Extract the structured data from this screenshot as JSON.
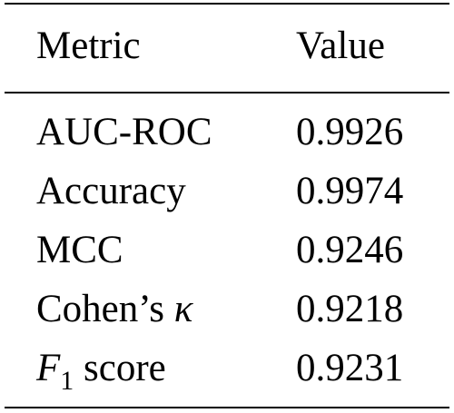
{
  "table": {
    "headers": {
      "metric": "Metric",
      "value": "Value"
    },
    "rows": [
      {
        "metric": "AUC-ROC",
        "value": "0.9926"
      },
      {
        "metric": "Accuracy",
        "value": "0.9974"
      },
      {
        "metric": "MCC",
        "value": "0.9246"
      },
      {
        "metric_prefix": "Cohen’s ",
        "metric_symbol": "κ",
        "value": "0.9218"
      },
      {
        "metric_symbol": "F",
        "metric_subscript": "1",
        "metric_suffix": " score",
        "value": "0.9231"
      }
    ]
  }
}
